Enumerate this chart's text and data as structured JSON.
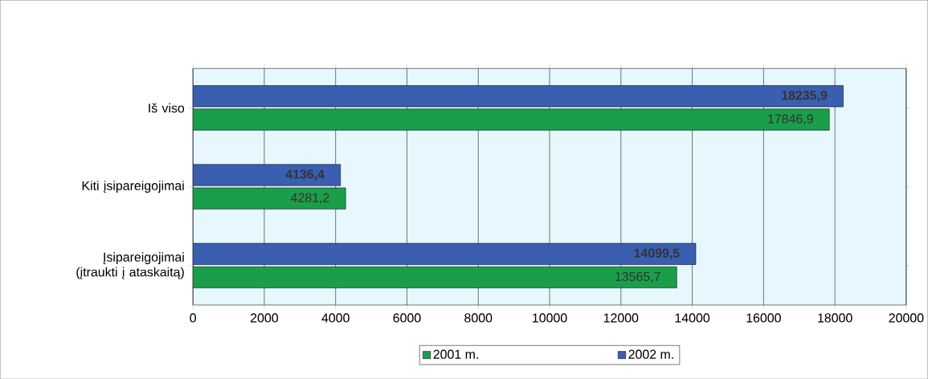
{
  "chart_data": {
    "type": "bar",
    "orientation": "horizontal",
    "categories": [
      "Iš viso",
      "Kiti įsipareigojimai",
      "Įsipareigojimai (įtraukti į ataskaitą)"
    ],
    "series": [
      {
        "name": "2001 m.",
        "color": "#1a9e4a",
        "values": [
          17846.9,
          4281.2,
          13565.7
        ],
        "value_labels": [
          "17846,9",
          "4281,2",
          "13565,7"
        ]
      },
      {
        "name": "2002 m.",
        "color": "#3a5fb0",
        "values": [
          18235.9,
          4136.4,
          14099.5
        ],
        "value_labels": [
          "18235,9",
          "4136,4",
          "14099,5"
        ]
      }
    ],
    "xlim": [
      0,
      20000
    ],
    "xticks": [
      0,
      2000,
      4000,
      6000,
      8000,
      10000,
      12000,
      14000,
      16000,
      18000,
      20000
    ],
    "grid": "x",
    "legend": "bottom"
  }
}
